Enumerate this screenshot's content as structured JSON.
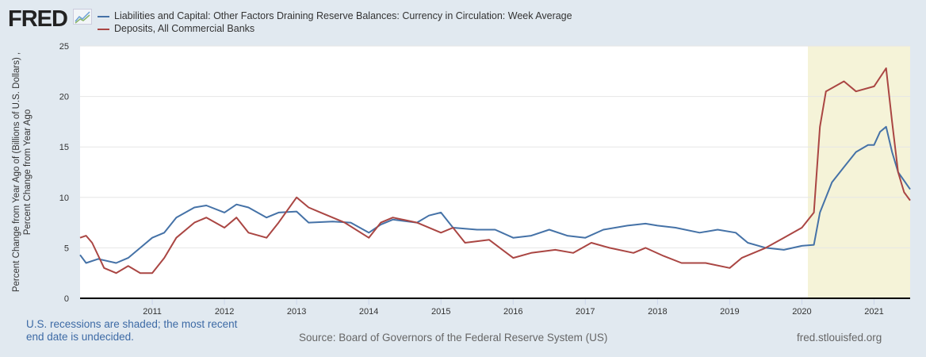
{
  "header": {
    "logo": "FRED"
  },
  "footer": {
    "recession_note": "U.S. recessions are shaded; the most recent end date is undecided.",
    "source": "Source: Board of Governors of the Federal Reserve System (US)",
    "site": "fred.stlouisfed.org"
  },
  "chart_data": {
    "type": "line",
    "ylabel": "Percent Change from Year Ago of (Billions of U.S. Dollars) , Percent Change from Year Ago",
    "ylim": [
      0,
      25
    ],
    "yticks": [
      0,
      5,
      10,
      15,
      20,
      25
    ],
    "xlim": [
      "2010-01",
      "2021-07"
    ],
    "xticks": [
      "2011",
      "2012",
      "2013",
      "2014",
      "2015",
      "2016",
      "2017",
      "2018",
      "2019",
      "2020",
      "2021"
    ],
    "grid": true,
    "legend_placement": "top-left",
    "recession_shading": {
      "start": "2020-02",
      "end": "2021-07",
      "color": "#f5f3d8"
    },
    "series": [
      {
        "name": "Liabilities and Capital: Other Factors Draining Reserve Balances: Currency in Circulation: Week Average",
        "color": "#4572a7",
        "points": [
          [
            "2010-01",
            4.3
          ],
          [
            "2010-02",
            3.5
          ],
          [
            "2010-04",
            3.9
          ],
          [
            "2010-07",
            3.5
          ],
          [
            "2010-09",
            4.0
          ],
          [
            "2010-11",
            5.0
          ],
          [
            "2011-01",
            6.0
          ],
          [
            "2011-03",
            6.5
          ],
          [
            "2011-05",
            8.0
          ],
          [
            "2011-08",
            9.0
          ],
          [
            "2011-10",
            9.2
          ],
          [
            "2012-01",
            8.5
          ],
          [
            "2012-03",
            9.3
          ],
          [
            "2012-05",
            9.0
          ],
          [
            "2012-08",
            8.0
          ],
          [
            "2012-10",
            8.5
          ],
          [
            "2013-01",
            8.6
          ],
          [
            "2013-03",
            7.5
          ],
          [
            "2013-07",
            7.6
          ],
          [
            "2013-10",
            7.5
          ],
          [
            "2014-01",
            6.5
          ],
          [
            "2014-03",
            7.3
          ],
          [
            "2014-05",
            7.8
          ],
          [
            "2014-09",
            7.5
          ],
          [
            "2014-11",
            8.2
          ],
          [
            "2015-01",
            8.5
          ],
          [
            "2015-03",
            7.0
          ],
          [
            "2015-07",
            6.8
          ],
          [
            "2015-10",
            6.8
          ],
          [
            "2016-01",
            6.0
          ],
          [
            "2016-04",
            6.2
          ],
          [
            "2016-07",
            6.8
          ],
          [
            "2016-10",
            6.2
          ],
          [
            "2017-01",
            6.0
          ],
          [
            "2017-04",
            6.8
          ],
          [
            "2017-08",
            7.2
          ],
          [
            "2017-11",
            7.4
          ],
          [
            "2018-01",
            7.2
          ],
          [
            "2018-04",
            7.0
          ],
          [
            "2018-08",
            6.5
          ],
          [
            "2018-11",
            6.8
          ],
          [
            "2019-02",
            6.5
          ],
          [
            "2019-04",
            5.5
          ],
          [
            "2019-07",
            5.0
          ],
          [
            "2019-10",
            4.8
          ],
          [
            "2020-01",
            5.2
          ],
          [
            "2020-03",
            5.3
          ],
          [
            "2020-04",
            8.5
          ],
          [
            "2020-06",
            11.5
          ],
          [
            "2020-08",
            13.0
          ],
          [
            "2020-10",
            14.5
          ],
          [
            "2020-12",
            15.2
          ],
          [
            "2021-01",
            15.2
          ],
          [
            "2021-02",
            16.5
          ],
          [
            "2021-03",
            17.0
          ],
          [
            "2021-04",
            14.5
          ],
          [
            "2021-05",
            12.5
          ],
          [
            "2021-07",
            10.8
          ]
        ]
      },
      {
        "name": "Deposits, All Commercial Banks",
        "color": "#aa4643",
        "points": [
          [
            "2010-01",
            6.0
          ],
          [
            "2010-02",
            6.2
          ],
          [
            "2010-03",
            5.5
          ],
          [
            "2010-05",
            3.0
          ],
          [
            "2010-07",
            2.5
          ],
          [
            "2010-09",
            3.2
          ],
          [
            "2010-11",
            2.5
          ],
          [
            "2011-01",
            2.5
          ],
          [
            "2011-03",
            4.0
          ],
          [
            "2011-05",
            6.0
          ],
          [
            "2011-08",
            7.5
          ],
          [
            "2011-10",
            8.0
          ],
          [
            "2012-01",
            7.0
          ],
          [
            "2012-03",
            8.0
          ],
          [
            "2012-05",
            6.5
          ],
          [
            "2012-08",
            6.0
          ],
          [
            "2012-10",
            7.5
          ],
          [
            "2013-01",
            10.0
          ],
          [
            "2013-03",
            9.0
          ],
          [
            "2013-05",
            8.5
          ],
          [
            "2013-09",
            7.5
          ],
          [
            "2014-01",
            6.0
          ],
          [
            "2014-03",
            7.5
          ],
          [
            "2014-05",
            8.0
          ],
          [
            "2014-09",
            7.5
          ],
          [
            "2015-01",
            6.5
          ],
          [
            "2015-03",
            7.0
          ],
          [
            "2015-05",
            5.5
          ],
          [
            "2015-09",
            5.8
          ],
          [
            "2016-01",
            4.0
          ],
          [
            "2016-04",
            4.5
          ],
          [
            "2016-08",
            4.8
          ],
          [
            "2016-11",
            4.5
          ],
          [
            "2017-02",
            5.5
          ],
          [
            "2017-05",
            5.0
          ],
          [
            "2017-09",
            4.5
          ],
          [
            "2017-11",
            5.0
          ],
          [
            "2018-02",
            4.2
          ],
          [
            "2018-05",
            3.5
          ],
          [
            "2018-09",
            3.5
          ],
          [
            "2019-01",
            3.0
          ],
          [
            "2019-03",
            4.0
          ],
          [
            "2019-07",
            5.0
          ],
          [
            "2019-10",
            6.0
          ],
          [
            "2020-01",
            7.0
          ],
          [
            "2020-03",
            8.5
          ],
          [
            "2020-04",
            17.0
          ],
          [
            "2020-05",
            20.5
          ],
          [
            "2020-08",
            21.5
          ],
          [
            "2020-10",
            20.5
          ],
          [
            "2021-01",
            21.0
          ],
          [
            "2021-03",
            22.8
          ],
          [
            "2021-04",
            17.5
          ],
          [
            "2021-05",
            12.5
          ],
          [
            "2021-06",
            10.5
          ],
          [
            "2021-07",
            9.7
          ]
        ]
      }
    ]
  }
}
